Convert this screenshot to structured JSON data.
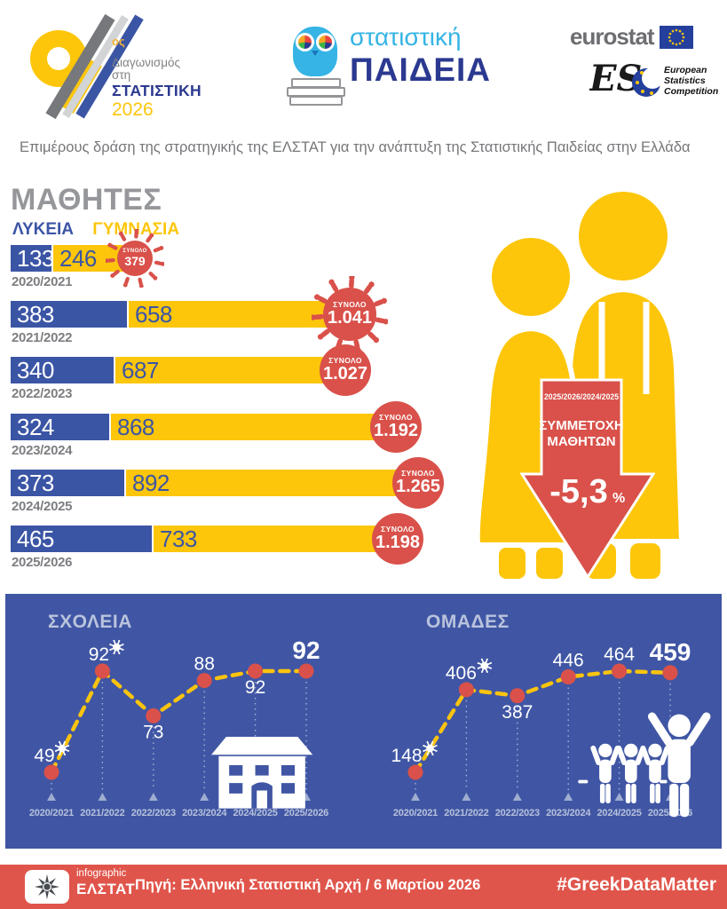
{
  "header": {
    "edition_number": "9",
    "edition_suffix": "ος",
    "competition_line1": "Διαγωνισμός στη",
    "competition_line2": "ΣΤΑΤΙΣΤΙΚΗ",
    "competition_year": "2026",
    "paideia_line1": "στατιστική",
    "paideia_line2": "ΠΑΙΔΕΙΑ",
    "eurostat_label": "eurostat",
    "esc_abbr": "ES",
    "esc_line1": "European",
    "esc_line2": "Statistics",
    "esc_line3": "Competition",
    "subtitle": "Επιμέρους δράση της στρατηγικής της ΕΛΣΤΑΤ για την ανάπτυξη της Στατιστικής Παιδείας στην Ελλάδα"
  },
  "decline_callout": {
    "period": "2025/2026/2024/2025",
    "label_line1": "ΣΥΜΜΕΤΟΧΗ",
    "label_line2": "ΜΑΘΗΤΩΝ",
    "value": "-5,3",
    "unit": "%"
  },
  "chart_data": [
    {
      "type": "bar",
      "title": "ΜΑΘΗΤΕΣ",
      "orientation": "horizontal",
      "stacked": true,
      "categories": [
        "2020/2021",
        "2021/2022",
        "2022/2023",
        "2023/2024",
        "2024/2025",
        "2025/2026"
      ],
      "series": [
        {
          "name": "ΛΥΚΕΙΑ",
          "color": "#3b55a5",
          "values": [
            133,
            383,
            340,
            324,
            373,
            465
          ]
        },
        {
          "name": "ΓΥΜΝΑΣΙΑ",
          "color": "#fdc60b",
          "values": [
            246,
            658,
            687,
            868,
            892,
            733
          ]
        }
      ],
      "total_label": "ΣΥΝΟΛΟ",
      "totals": [
        "379",
        "1.041",
        "1.027",
        "1.192",
        "1.265",
        "1.198"
      ],
      "badges": [
        "virus-small",
        "virus-large",
        "circle",
        "circle",
        "circle",
        "circle"
      ],
      "legend_position": "top"
    },
    {
      "type": "line",
      "title": "ΣΧΟΛΕΙΑ",
      "categories": [
        "2020/2021",
        "2021/2022",
        "2022/2023",
        "2023/2024",
        "2024/2025",
        "2025/2026"
      ],
      "values": [
        49,
        92,
        73,
        88,
        92,
        92
      ],
      "ylim": [
        49,
        92
      ],
      "grid": false,
      "legend_position": "none",
      "line_style": "dashed",
      "line_color": "#fcc40e",
      "point_color": "#d9514a",
      "point_labels": [
        {
          "pos": "above",
          "virus": true,
          "dx": -8
        },
        {
          "pos": "above",
          "virus": true,
          "dx": -4
        },
        {
          "pos": "below"
        },
        {
          "pos": "above"
        },
        {
          "pos": "below"
        },
        {
          "pos": "above",
          "emphasis": true
        }
      ],
      "icon": "school-building"
    },
    {
      "type": "line",
      "title": "ΟΜΑΔΕΣ",
      "categories": [
        "2020/2021",
        "2021/2022",
        "2022/2023",
        "2023/2024",
        "2024/2025",
        "2025/2026"
      ],
      "values": [
        148,
        406,
        387,
        446,
        464,
        459
      ],
      "ylim": [
        148,
        464
      ],
      "grid": false,
      "legend_position": "none",
      "line_style": "dashed",
      "line_color": "#fcc40e",
      "point_color": "#d9514a",
      "point_labels": [
        {
          "pos": "above",
          "virus": true,
          "dx": -10
        },
        {
          "pos": "above",
          "virus": true,
          "dx": -6
        },
        {
          "pos": "below"
        },
        {
          "pos": "above"
        },
        {
          "pos": "above"
        },
        {
          "pos": "above",
          "emphasis": true
        }
      ],
      "icon": "cheering-team"
    }
  ],
  "footer": {
    "logo_small": "infographic",
    "logo_main": "ΕΛΣΤΑΤ",
    "source": "Πηγή: Ελληνική Στατιστική Αρχή / 6 Μαρτίου 2026",
    "hashtag": "#GreekDataMatter"
  },
  "colors": {
    "lykeia_blue": "#3b55a5",
    "gymnasia_yellow": "#fdc60b",
    "total_red": "#d9514a",
    "panel_blue": "#4056a4",
    "footer_red": "#e0554b",
    "navy": "#2b3990",
    "light_blue": "#35b4e5",
    "gray_text": "#76777a"
  }
}
